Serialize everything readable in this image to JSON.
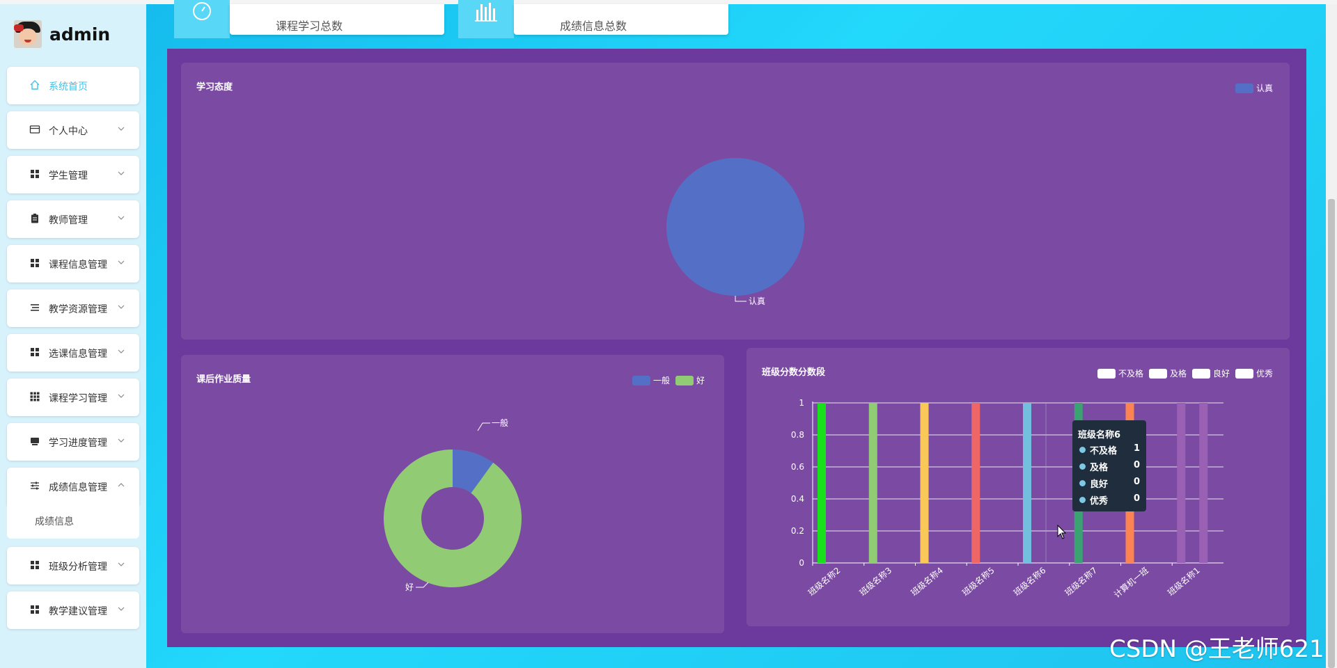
{
  "brand": {
    "name": "admin"
  },
  "sidebar": {
    "items": [
      {
        "label": "系统首页",
        "icon": "home-icon"
      },
      {
        "label": "个人中心",
        "icon": "card-icon"
      },
      {
        "label": "学生管理",
        "icon": "grid-icon"
      },
      {
        "label": "教师管理",
        "icon": "clipboard-icon"
      },
      {
        "label": "课程信息管理",
        "icon": "grid-icon"
      },
      {
        "label": "教学资源管理",
        "icon": "list-icon"
      },
      {
        "label": "选课信息管理",
        "icon": "grid-icon"
      },
      {
        "label": "课程学习管理",
        "icon": "apps-icon"
      },
      {
        "label": "学习进度管理",
        "icon": "monitor-icon"
      },
      {
        "label": "成绩信息管理",
        "icon": "sliders-icon"
      },
      {
        "label": "班级分析管理",
        "icon": "grid-icon"
      },
      {
        "label": "教学建议管理",
        "icon": "grid-icon"
      }
    ],
    "submenu": {
      "label": "成绩信息"
    }
  },
  "stats": [
    {
      "label": "课程学习总数",
      "icon": "speedometer-icon"
    },
    {
      "label": "成绩信息总数",
      "icon": "bar-chart-icon"
    }
  ],
  "colors": {
    "panel": "#6b3a9c",
    "card": "#7b4ba3",
    "accent": "#58d7f7"
  },
  "watermark": "CSDN @王老师621",
  "tooltip": {
    "title": "班级名称6",
    "rows": [
      {
        "name": "不及格",
        "value": "1"
      },
      {
        "name": "及格",
        "value": "0"
      },
      {
        "name": "良好",
        "value": "0"
      },
      {
        "name": "优秀",
        "value": "0"
      }
    ]
  },
  "chart_data": [
    {
      "type": "pie",
      "title": "学习态度",
      "legend": [
        "认真"
      ],
      "slices": [
        {
          "name": "认真",
          "value": 1,
          "color": "#5470c6"
        }
      ]
    },
    {
      "type": "pie",
      "title": "课后作业质量",
      "donut": true,
      "legend": [
        "一般",
        "好"
      ],
      "slices": [
        {
          "name": "一般",
          "value": 1,
          "color": "#5470c6"
        },
        {
          "name": "好",
          "value": 9,
          "color": "#91cc75"
        }
      ]
    },
    {
      "type": "bar",
      "title": "班级分数分数段",
      "categories": [
        "班级名称2",
        "班级名称3",
        "班级名称4",
        "班级名称5",
        "班级名称6",
        "班级名称7",
        "计算机一班",
        "班级名称1"
      ],
      "series_names": [
        "不及格",
        "及格",
        "良好",
        "优秀"
      ],
      "values": [
        1,
        1,
        1,
        1,
        1,
        1,
        1,
        1
      ],
      "extra_bar": {
        "category": "班级名称1",
        "value": 1
      },
      "bar_colors": [
        "#18e01a",
        "#91cc75",
        "#fac858",
        "#ee6666",
        "#73c0de",
        "#3ba272",
        "#fc8452",
        "#9a60b4"
      ],
      "yticks": [
        "0",
        "0.2",
        "0.4",
        "0.6",
        "0.8",
        "1"
      ],
      "ylim": [
        0,
        1
      ]
    }
  ]
}
